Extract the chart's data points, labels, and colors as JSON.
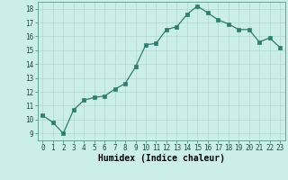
{
  "x": [
    0,
    1,
    2,
    3,
    4,
    5,
    6,
    7,
    8,
    9,
    10,
    11,
    12,
    13,
    14,
    15,
    16,
    17,
    18,
    19,
    20,
    21,
    22,
    23
  ],
  "y": [
    10.3,
    9.8,
    9.0,
    10.7,
    11.4,
    11.6,
    11.7,
    12.2,
    12.6,
    13.8,
    15.4,
    15.5,
    16.5,
    16.7,
    17.6,
    18.2,
    17.7,
    17.2,
    16.9,
    16.5,
    16.5,
    15.6,
    15.9,
    15.2
  ],
  "xlabel": "Humidex (Indice chaleur)",
  "xlim": [
    -0.5,
    23.5
  ],
  "ylim": [
    8.5,
    18.5
  ],
  "yticks": [
    9,
    10,
    11,
    12,
    13,
    14,
    15,
    16,
    17,
    18
  ],
  "xticks": [
    0,
    1,
    2,
    3,
    4,
    5,
    6,
    7,
    8,
    9,
    10,
    11,
    12,
    13,
    14,
    15,
    16,
    17,
    18,
    19,
    20,
    21,
    22,
    23
  ],
  "line_color": "#2e7d6e",
  "marker_color": "#2e7d6e",
  "bg_color": "#cceee8",
  "grid_color": "#b0d8d0",
  "tick_fontsize": 5.5,
  "label_fontsize": 7,
  "marker_size": 2.5,
  "line_width": 0.9
}
